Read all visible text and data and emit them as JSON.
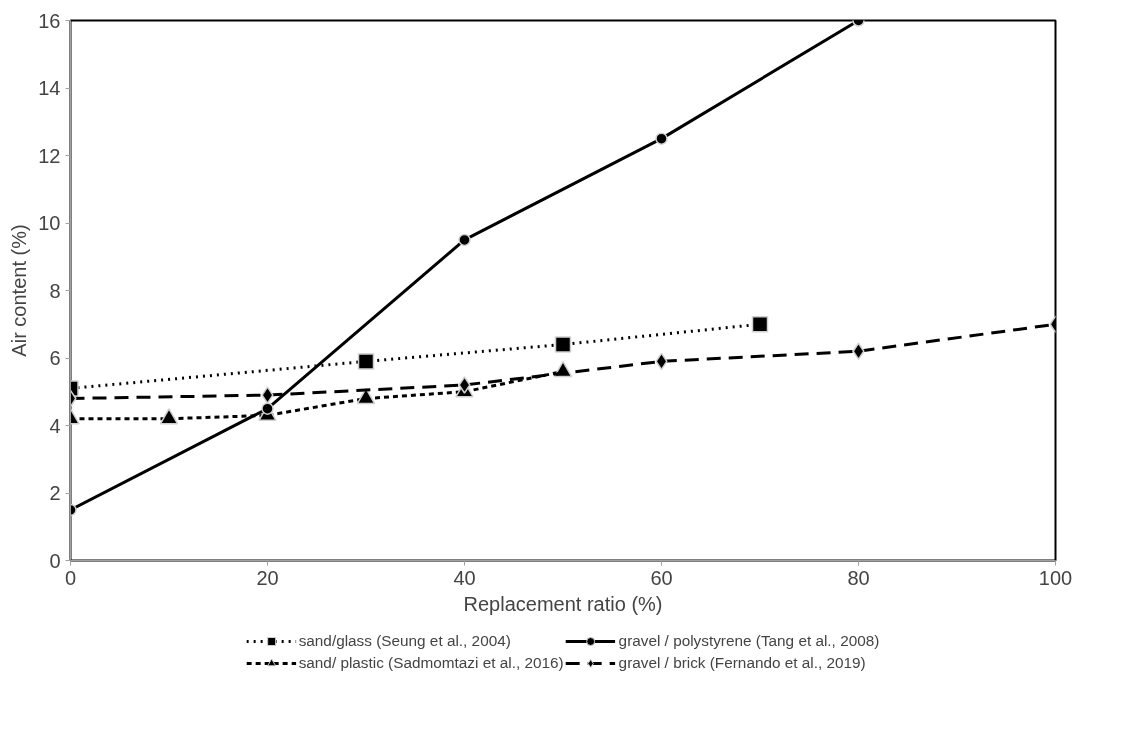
{
  "chart_data": {
    "type": "line",
    "xlabel": "Replacement ratio (%)",
    "ylabel": "Air content (%)",
    "xlim": [
      0,
      100
    ],
    "xticks": [
      0,
      20,
      40,
      60,
      80,
      100
    ],
    "ylim": [
      0,
      16
    ],
    "yticks": [
      0,
      2,
      4,
      6,
      8,
      10,
      12,
      14,
      16
    ],
    "grid": false,
    "legend": "bottom",
    "series": [
      {
        "name": "sand/glass (Seung et al., 2004)",
        "color": "#000000",
        "marker": "square",
        "line_style": "dotted",
        "x": [
          0,
          30,
          50,
          70
        ],
        "values": [
          5.1,
          5.9,
          6.4,
          7.0
        ]
      },
      {
        "name": "sand/ plastic (Sadmomtazi et al., 2016)",
        "color": "#000000",
        "marker": "triangle",
        "line_style": "dashed",
        "x": [
          0,
          10,
          20,
          30,
          40,
          50
        ],
        "values": [
          4.2,
          4.2,
          4.3,
          4.8,
          5.0,
          5.6
        ]
      },
      {
        "name": "gravel / polystyrene (Tang et al., 2008)",
        "color": "#000000",
        "marker": "circle",
        "line_style": "solid",
        "x": [
          0,
          20,
          40,
          60,
          80
        ],
        "values": [
          1.5,
          4.5,
          9.5,
          12.5,
          16.0
        ]
      },
      {
        "name": "gravel / brick (Fernando et al., 2019)",
        "color": "#000000",
        "marker": "diamond",
        "line_style": "longdash",
        "x": [
          0,
          20,
          40,
          60,
          80,
          100
        ],
        "values": [
          4.8,
          4.9,
          5.2,
          5.9,
          6.2,
          7.0
        ]
      }
    ]
  }
}
